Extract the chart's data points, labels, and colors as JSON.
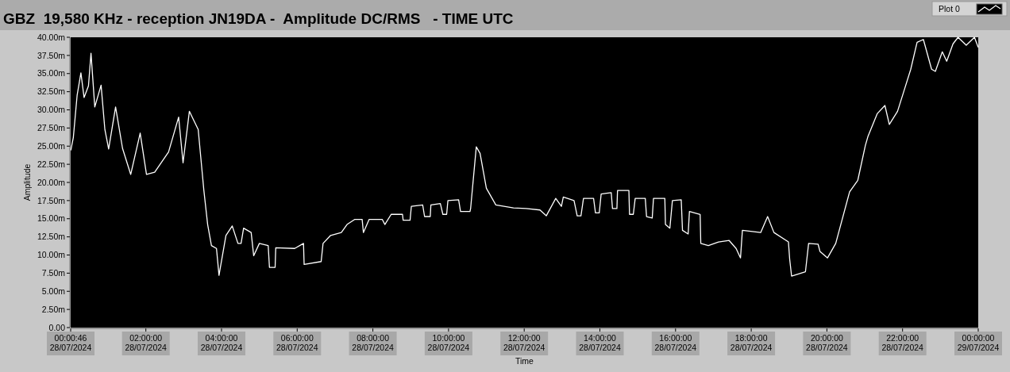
{
  "chart_data": {
    "type": "line",
    "title": "GBZ  19,580 KHz - reception JN19DA -  Amplitude DC/RMS   - TIME UTC",
    "xlabel": "Time",
    "ylabel": "Amplitude",
    "legend": "top right",
    "grid": false,
    "xlim": [
      "2024-07-28T00:00:46",
      "2024-07-29T00:00"
    ],
    "xticks": [
      {
        "value": "2024-07-28T00:00:46",
        "label": "00:00:46\n28/07/2024"
      },
      {
        "value": "2024-07-28T02:00",
        "label": "02:00:00\n28/07/2024"
      },
      {
        "value": "2024-07-28T04:00",
        "label": "04:00:00\n28/07/2024"
      },
      {
        "value": "2024-07-28T06:00",
        "label": "06:00:00\n28/07/2024"
      },
      {
        "value": "2024-07-28T08:00",
        "label": "08:00:00\n28/07/2024"
      },
      {
        "value": "2024-07-28T10:00",
        "label": "10:00:00\n28/07/2024"
      },
      {
        "value": "2024-07-28T12:00",
        "label": "12:00:00\n28/07/2024"
      },
      {
        "value": "2024-07-28T14:00",
        "label": "14:00:00\n28/07/2024"
      },
      {
        "value": "2024-07-28T16:00",
        "label": "16:00:00\n28/07/2024"
      },
      {
        "value": "2024-07-28T18:00",
        "label": "18:00:00\n28/07/2024"
      },
      {
        "value": "2024-07-28T20:00",
        "label": "20:00:00\n28/07/2024"
      },
      {
        "value": "2024-07-28T22:00",
        "label": "22:00:00\n28/07/2024"
      },
      {
        "value": "2024-07-29T00:00",
        "label": "00:00:00\n29/07/2024"
      }
    ],
    "ylim": [
      0,
      40
    ],
    "yticks": [
      {
        "value": 0,
        "label": "0.00"
      },
      {
        "value": 2.5,
        "label": "2.50m"
      },
      {
        "value": 5,
        "label": "5.00m"
      },
      {
        "value": 7.5,
        "label": "7.50m"
      },
      {
        "value": 10,
        "label": "10.00m"
      },
      {
        "value": 12.5,
        "label": "12.50m"
      },
      {
        "value": 15,
        "label": "15.00m"
      },
      {
        "value": 17.5,
        "label": "17.50m"
      },
      {
        "value": 20,
        "label": "20.00m"
      },
      {
        "value": 22.5,
        "label": "22.50m"
      },
      {
        "value": 25,
        "label": "25.00m"
      },
      {
        "value": 27.5,
        "label": "27.50m"
      },
      {
        "value": 30,
        "label": "30.00m"
      },
      {
        "value": 32.5,
        "label": "32.50m"
      },
      {
        "value": 35,
        "label": "35.00m"
      },
      {
        "value": 37.5,
        "label": "37.50m"
      },
      {
        "value": 40,
        "label": "40.00m"
      }
    ],
    "series": [
      {
        "name": "Plot 0",
        "color": "#ffffff",
        "x": [
          "2024-07-28T00:01",
          "2024-07-28T00:05",
          "2024-07-28T00:11",
          "2024-07-28T00:17",
          "2024-07-28T00:22",
          "2024-07-28T00:29",
          "2024-07-28T00:33",
          "2024-07-28T00:39",
          "2024-07-28T00:49",
          "2024-07-28T00:55",
          "2024-07-28T01:01",
          "2024-07-28T01:12",
          "2024-07-28T01:23",
          "2024-07-28T01:36",
          "2024-07-28T01:51",
          "2024-07-28T02:01",
          "2024-07-28T02:14",
          "2024-07-28T02:36",
          "2024-07-28T02:52",
          "2024-07-28T02:59",
          "2024-07-28T03:09",
          "2024-07-28T03:23",
          "2024-07-28T03:32",
          "2024-07-28T03:38",
          "2024-07-28T03:44",
          "2024-07-28T03:52",
          "2024-07-28T03:56",
          "2024-07-28T04:07",
          "2024-07-28T04:17",
          "2024-07-28T04:26",
          "2024-07-28T04:31",
          "2024-07-28T04:35",
          "2024-07-28T04:47",
          "2024-07-28T04:51",
          "2024-07-28T05:00",
          "2024-07-28T05:14",
          "2024-07-28T05:16",
          "2024-07-28T05:25",
          "2024-07-28T05:26",
          "2024-07-28T05:56",
          "2024-07-28T06:10",
          "2024-07-28T06:11",
          "2024-07-28T06:38",
          "2024-07-28T06:41",
          "2024-07-28T06:53",
          "2024-07-28T07:10",
          "2024-07-28T07:19",
          "2024-07-28T07:31",
          "2024-07-28T07:43",
          "2024-07-28T07:45",
          "2024-07-28T07:54",
          "2024-07-28T08:15",
          "2024-07-28T08:19",
          "2024-07-28T08:29",
          "2024-07-28T08:47",
          "2024-07-28T08:48",
          "2024-07-28T08:59",
          "2024-07-28T09:01",
          "2024-07-28T09:19",
          "2024-07-28T09:22",
          "2024-07-28T09:31",
          "2024-07-28T09:32",
          "2024-07-28T09:47",
          "2024-07-28T09:51",
          "2024-07-28T09:57",
          "2024-07-28T09:59",
          "2024-07-28T10:16",
          "2024-07-28T10:19",
          "2024-07-28T10:34",
          "2024-07-28T10:35",
          "2024-07-28T10:44",
          "2024-07-28T10:50",
          "2024-07-28T11:00",
          "2024-07-28T11:15",
          "2024-07-28T11:43",
          "2024-07-28T12:03",
          "2024-07-28T12:25",
          "2024-07-28T12:35",
          "2024-07-28T12:50",
          "2024-07-28T12:59",
          "2024-07-28T13:02",
          "2024-07-28T13:19",
          "2024-07-28T13:24",
          "2024-07-28T13:30",
          "2024-07-28T13:34",
          "2024-07-28T13:50",
          "2024-07-28T13:53",
          "2024-07-28T13:59",
          "2024-07-28T14:02",
          "2024-07-28T14:18",
          "2024-07-28T14:20",
          "2024-07-28T14:27",
          "2024-07-28T14:28",
          "2024-07-28T14:46",
          "2024-07-28T14:47",
          "2024-07-28T14:53",
          "2024-07-28T14:56",
          "2024-07-28T15:12",
          "2024-07-28T15:14",
          "2024-07-28T15:23",
          "2024-07-28T15:25",
          "2024-07-28T15:43",
          "2024-07-28T15:44",
          "2024-07-28T15:51",
          "2024-07-28T15:55",
          "2024-07-28T16:09",
          "2024-07-28T16:11",
          "2024-07-28T16:20",
          "2024-07-28T16:22",
          "2024-07-28T16:39",
          "2024-07-28T16:40",
          "2024-07-28T16:52",
          "2024-07-28T17:08",
          "2024-07-28T17:25",
          "2024-07-28T17:36",
          "2024-07-28T17:43",
          "2024-07-28T17:46",
          "2024-07-28T18:15",
          "2024-07-28T18:26",
          "2024-07-28T18:36",
          "2024-07-28T18:59",
          "2024-07-28T19:01",
          "2024-07-28T19:04",
          "2024-07-28T19:26",
          "2024-07-28T19:31",
          "2024-07-28T19:46",
          "2024-07-28T19:49",
          "2024-07-28T20:01",
          "2024-07-28T20:14",
          "2024-07-28T20:36",
          "2024-07-28T20:49",
          "2024-07-28T21:01",
          "2024-07-28T21:05",
          "2024-07-28T21:20",
          "2024-07-28T21:32",
          "2024-07-28T21:39",
          "2024-07-28T21:52",
          "2024-07-28T22:04",
          "2024-07-28T22:13",
          "2024-07-28T22:23",
          "2024-07-28T22:33",
          "2024-07-28T22:46",
          "2024-07-28T22:52",
          "2024-07-28T23:03",
          "2024-07-28T23:10",
          "2024-07-28T23:20",
          "2024-07-28T23:28",
          "2024-07-28T23:41",
          "2024-07-28T23:54",
          "2024-07-29T00:00"
        ],
        "values": [
          24.4,
          26.2,
          32.0,
          35.1,
          31.7,
          33.3,
          37.8,
          30.4,
          33.4,
          27.3,
          24.6,
          30.4,
          24.7,
          21.1,
          26.8,
          21.1,
          21.4,
          24.2,
          29.0,
          22.7,
          29.8,
          27.3,
          18.9,
          14.2,
          11.3,
          10.9,
          7.2,
          12.7,
          14.0,
          11.6,
          11.6,
          13.7,
          13.1,
          9.9,
          11.6,
          11.3,
          8.3,
          8.3,
          11.0,
          10.9,
          11.6,
          8.7,
          9.1,
          11.6,
          12.7,
          13.1,
          14.2,
          14.9,
          14.9,
          13.1,
          14.9,
          14.9,
          14.2,
          15.6,
          15.6,
          14.8,
          14.8,
          16.7,
          16.9,
          15.3,
          15.3,
          16.9,
          17.1,
          15.6,
          15.6,
          17.5,
          17.6,
          16.0,
          16.0,
          16.4,
          24.9,
          24.0,
          19.2,
          16.9,
          16.5,
          16.4,
          16.2,
          15.4,
          17.8,
          16.7,
          18.0,
          17.5,
          15.4,
          15.4,
          17.8,
          17.8,
          15.8,
          15.8,
          18.4,
          18.6,
          16.4,
          16.4,
          18.9,
          18.9,
          15.6,
          15.6,
          17.8,
          17.8,
          15.3,
          15.1,
          17.8,
          17.8,
          14.2,
          13.7,
          17.5,
          17.6,
          13.4,
          12.9,
          16.0,
          15.6,
          11.6,
          11.3,
          11.8,
          12.0,
          10.9,
          9.6,
          13.4,
          13.1,
          15.3,
          13.1,
          11.8,
          9.4,
          7.1,
          7.7,
          11.6,
          11.5,
          10.5,
          9.6,
          11.6,
          18.7,
          20.3,
          25.1,
          26.3,
          29.5,
          30.6,
          28.0,
          29.8,
          33.1,
          35.6,
          39.3,
          39.7,
          35.6,
          35.3,
          38.0,
          36.7,
          39.1,
          40.0,
          38.9,
          40.0,
          38.6
        ]
      }
    ]
  }
}
